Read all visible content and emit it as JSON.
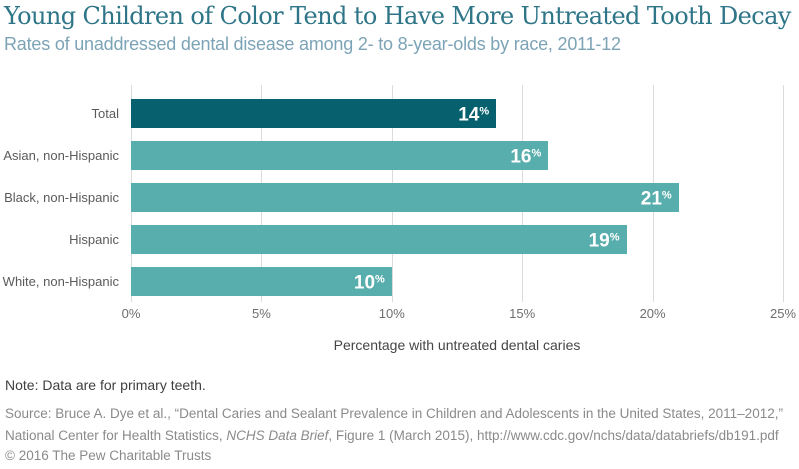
{
  "header": {
    "title": "Young Children of Color Tend to Have More Untreated Tooth Decay",
    "subtitle": "Rates of unaddressed dental disease among 2- to 8-year-olds by race, 2011-12"
  },
  "chart_data": {
    "type": "bar",
    "orientation": "horizontal",
    "categories": [
      "Total",
      "Asian, non-Hispanic",
      "Black, non-Hispanic",
      "Hispanic",
      "White, non-Hispanic"
    ],
    "values": [
      14,
      16,
      21,
      19,
      10
    ],
    "value_suffix": "%",
    "emphasized_category": "Total",
    "xlabel": "Percentage with untreated dental caries",
    "x_ticks": [
      "0%",
      "5%",
      "10%",
      "15%",
      "20%",
      "25%"
    ],
    "xlim": [
      0,
      25
    ],
    "grid": true,
    "colors": {
      "bar": "#58AEAC",
      "emphasis": "#06606D",
      "value_label": "#ffffff"
    }
  },
  "footer": {
    "note": "Note: Data are for primary teeth.",
    "source_prefix": "Source: Bruce A. Dye et al., “Dental Caries and Sealant Prevalence in Children and Adolescents in the United States, 2011–2012,” National Center for Health Statistics, ",
    "source_italic": "NCHS Data Brief",
    "source_suffix": ", Figure 1 (March 2015), http://www.cdc.gov/nchs/data/databriefs/db191.pdf",
    "copyright": "© 2016 The Pew Charitable Trusts"
  }
}
